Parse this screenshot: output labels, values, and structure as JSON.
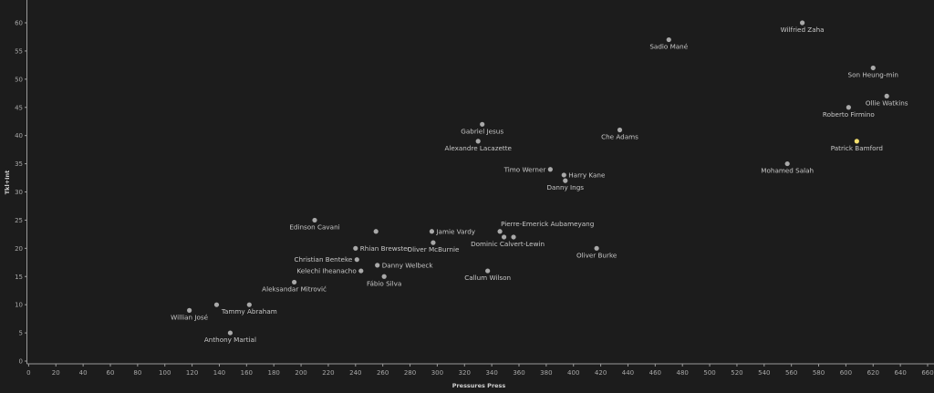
{
  "chart_data": {
    "type": "scatter",
    "title": "",
    "xlabel": "Pressures Press",
    "ylabel": "Tkl+Int",
    "xlim": [
      0,
      660
    ],
    "ylim": [
      0,
      63
    ],
    "xticks": [
      0,
      20,
      40,
      60,
      80,
      100,
      120,
      140,
      160,
      180,
      200,
      220,
      240,
      260,
      280,
      300,
      320,
      340,
      360,
      380,
      400,
      420,
      440,
      460,
      480,
      500,
      520,
      540,
      560,
      580,
      600,
      620,
      640,
      660
    ],
    "yticks": [
      0,
      5,
      10,
      15,
      20,
      25,
      30,
      35,
      40,
      45,
      50,
      55,
      60
    ],
    "grid": false,
    "colors": {
      "background": "#1c1c1c",
      "point": "#a9a9a9",
      "highlight": "#f5e06e",
      "axis": "#9a9a9a"
    },
    "points": [
      {
        "label": "Wilfried Zaha",
        "x": 568,
        "y": 60,
        "pos": "below"
      },
      {
        "label": "Sadio Mané",
        "x": 470,
        "y": 57,
        "pos": "below"
      },
      {
        "label": "Son Heung-min",
        "x": 620,
        "y": 52,
        "pos": "below"
      },
      {
        "label": "Ollie Watkins",
        "x": 630,
        "y": 47,
        "pos": "below"
      },
      {
        "label": "Roberto Firmino",
        "x": 602,
        "y": 45,
        "pos": "below"
      },
      {
        "label": "Patrick Bamford",
        "x": 608,
        "y": 39,
        "pos": "below",
        "highlight": true
      },
      {
        "label": "Mohamed Salah",
        "x": 557,
        "y": 35,
        "pos": "below"
      },
      {
        "label": "Gabriel Jesus",
        "x": 333,
        "y": 42,
        "pos": "below"
      },
      {
        "label": "Alexandre Lacazette",
        "x": 330,
        "y": 39,
        "pos": "below"
      },
      {
        "label": "Che Adams",
        "x": 434,
        "y": 41,
        "pos": "below"
      },
      {
        "label": "Timo Werner",
        "x": 383,
        "y": 34,
        "pos": "left"
      },
      {
        "label": "Harry Kane",
        "x": 393,
        "y": 33,
        "pos": "right"
      },
      {
        "label": "Danny Ings",
        "x": 394,
        "y": 32,
        "pos": "below"
      },
      {
        "label": "Edinson Cavani",
        "x": 210,
        "y": 25,
        "pos": "below"
      },
      {
        "label": "",
        "x": 255,
        "y": 23,
        "pos": "none"
      },
      {
        "label": "Jamie Vardy",
        "x": 296,
        "y": 23,
        "pos": "right"
      },
      {
        "label": "Oliver McBurnie",
        "x": 297,
        "y": 21,
        "pos": "below"
      },
      {
        "label": "Pierre-Emerick Aubameyang",
        "x": 346,
        "y": 23,
        "pos": "above-right"
      },
      {
        "label": "Dominic Calvert-Lewin",
        "x": 349,
        "y": 22,
        "pos": "below-right"
      },
      {
        "label": "",
        "x": 356,
        "y": 22,
        "pos": "none"
      },
      {
        "label": "Rhian Brewster",
        "x": 240,
        "y": 20,
        "pos": "right"
      },
      {
        "label": "Christian Benteke",
        "x": 241,
        "y": 18,
        "pos": "left"
      },
      {
        "label": "Danny Welbeck",
        "x": 256,
        "y": 17,
        "pos": "right"
      },
      {
        "label": "Kelechi Iheanacho",
        "x": 244,
        "y": 16,
        "pos": "left"
      },
      {
        "label": "Fábio Silva",
        "x": 261,
        "y": 15,
        "pos": "below"
      },
      {
        "label": "Callum Wilson",
        "x": 337,
        "y": 16,
        "pos": "below"
      },
      {
        "label": "Oliver Burke",
        "x": 417,
        "y": 20,
        "pos": "below"
      },
      {
        "label": "Aleksandar Mitrović",
        "x": 195,
        "y": 14,
        "pos": "below"
      },
      {
        "label": "Willian José",
        "x": 118,
        "y": 9,
        "pos": "below"
      },
      {
        "label": "",
        "x": 138,
        "y": 10,
        "pos": "none"
      },
      {
        "label": "Tammy Abraham",
        "x": 162,
        "y": 10,
        "pos": "below"
      },
      {
        "label": "Anthony Martial",
        "x": 148,
        "y": 5,
        "pos": "below"
      }
    ]
  }
}
